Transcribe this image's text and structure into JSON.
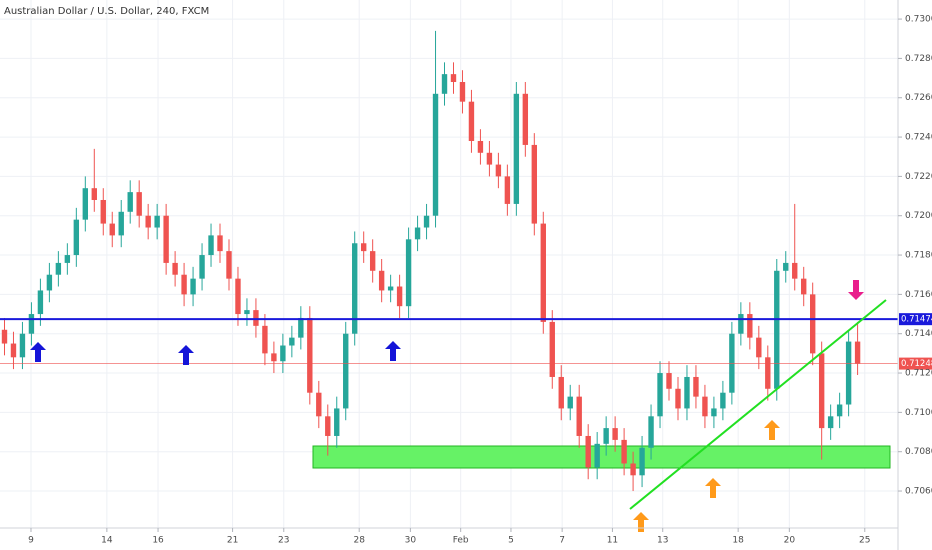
{
  "chart_data": {
    "type": "candlestick",
    "title": "Australian Dollar / U.S. Dollar, 240, FXCM",
    "up_color": "#26a69a",
    "down_color": "#ef5350",
    "x": [
      0,
      1,
      2,
      3,
      4,
      5,
      6,
      7,
      8,
      9,
      10,
      11,
      12,
      13,
      14,
      15,
      16,
      17,
      18,
      19,
      20,
      21,
      22,
      23,
      24,
      25,
      26,
      27,
      28,
      29,
      30,
      31,
      32,
      33,
      34,
      35,
      36,
      37,
      38,
      39,
      40,
      41,
      42,
      43,
      44,
      45,
      46,
      47,
      48,
      49,
      50,
      51,
      52,
      53,
      54,
      55,
      56,
      57,
      58,
      59,
      60,
      61,
      62,
      63,
      64,
      65,
      66,
      67,
      68,
      69,
      70,
      71,
      72,
      73,
      74,
      75,
      76,
      77,
      78,
      79,
      80,
      81,
      82,
      83,
      84,
      85,
      86,
      87,
      88,
      89,
      90,
      91,
      92,
      93,
      94,
      95
    ],
    "open": [
      0.7142,
      0.7135,
      0.7128,
      0.714,
      0.715,
      0.7162,
      0.717,
      0.7176,
      0.718,
      0.7198,
      0.7214,
      0.7208,
      0.7196,
      0.719,
      0.7202,
      0.7212,
      0.72,
      0.7194,
      0.72,
      0.7176,
      0.717,
      0.716,
      0.7168,
      0.718,
      0.719,
      0.7182,
      0.7168,
      0.715,
      0.7152,
      0.7144,
      0.713,
      0.7126,
      0.7134,
      0.7138,
      0.7148,
      0.711,
      0.7098,
      0.7088,
      0.7102,
      0.714,
      0.7186,
      0.7182,
      0.7172,
      0.7162,
      0.7164,
      0.7154,
      0.7188,
      0.7194,
      0.72,
      0.7262,
      0.7272,
      0.7268,
      0.7258,
      0.7238,
      0.7232,
      0.7226,
      0.722,
      0.7206,
      0.7262,
      0.7236,
      0.7196,
      0.7146,
      0.7118,
      0.7102,
      0.7108,
      0.7088,
      0.7072,
      0.7084,
      0.7092,
      0.7086,
      0.7074,
      0.7068,
      0.7082,
      0.7098,
      0.712,
      0.7112,
      0.7102,
      0.7118,
      0.7108,
      0.7098,
      0.7102,
      0.711,
      0.714,
      0.715,
      0.7138,
      0.7128,
      0.7112,
      0.7172,
      0.7176,
      0.7168,
      0.716,
      0.713,
      0.7092,
      0.7098,
      0.7104,
      0.7136
    ],
    "high": [
      0.7148,
      0.7141,
      0.7146,
      0.7156,
      0.7168,
      0.7176,
      0.7182,
      0.7186,
      0.7204,
      0.722,
      0.7234,
      0.7214,
      0.7202,
      0.7208,
      0.7218,
      0.7218,
      0.7206,
      0.7206,
      0.7206,
      0.7182,
      0.7176,
      0.7174,
      0.7186,
      0.7196,
      0.7196,
      0.7188,
      0.7174,
      0.7158,
      0.7158,
      0.715,
      0.7136,
      0.714,
      0.7144,
      0.7154,
      0.7154,
      0.7116,
      0.7104,
      0.7108,
      0.7146,
      0.7192,
      0.7192,
      0.7188,
      0.7178,
      0.717,
      0.717,
      0.7194,
      0.72,
      0.7206,
      0.7294,
      0.7278,
      0.7278,
      0.7274,
      0.7264,
      0.7244,
      0.7238,
      0.7232,
      0.7226,
      0.7268,
      0.7268,
      0.7242,
      0.7202,
      0.7152,
      0.7124,
      0.7114,
      0.7114,
      0.7094,
      0.709,
      0.7098,
      0.7098,
      0.7092,
      0.708,
      0.7088,
      0.7104,
      0.7126,
      0.7126,
      0.7118,
      0.7124,
      0.7124,
      0.7114,
      0.7108,
      0.7116,
      0.7146,
      0.7156,
      0.7156,
      0.7144,
      0.7134,
      0.7178,
      0.7182,
      0.7206,
      0.7174,
      0.7166,
      0.7136,
      0.7104,
      0.711,
      0.7142,
      0.7146
    ],
    "low": [
      0.7129,
      0.7122,
      0.7122,
      0.7134,
      0.7144,
      0.7156,
      0.7164,
      0.717,
      0.7174,
      0.7192,
      0.7202,
      0.719,
      0.7184,
      0.7184,
      0.7196,
      0.7194,
      0.7188,
      0.7188,
      0.717,
      0.7164,
      0.7154,
      0.7154,
      0.7162,
      0.7174,
      0.7176,
      0.7162,
      0.7144,
      0.7144,
      0.7138,
      0.7124,
      0.712,
      0.712,
      0.7128,
      0.7132,
      0.7104,
      0.7092,
      0.7078,
      0.7082,
      0.7096,
      0.7134,
      0.7176,
      0.7166,
      0.7156,
      0.7156,
      0.7148,
      0.7148,
      0.7182,
      0.7188,
      0.7194,
      0.7256,
      0.7262,
      0.7252,
      0.7232,
      0.7226,
      0.722,
      0.7214,
      0.72,
      0.72,
      0.723,
      0.719,
      0.714,
      0.7112,
      0.7096,
      0.7096,
      0.7082,
      0.7066,
      0.7066,
      0.7078,
      0.708,
      0.7068,
      0.706,
      0.7062,
      0.7076,
      0.7092,
      0.7106,
      0.7096,
      0.7096,
      0.7102,
      0.7092,
      0.7092,
      0.7096,
      0.7104,
      0.7134,
      0.7132,
      0.7122,
      0.7106,
      0.7106,
      0.7166,
      0.7162,
      0.7154,
      0.7124,
      0.7076,
      0.7086,
      0.7092,
      0.7098,
      0.7119
    ],
    "close": [
      0.7135,
      0.7128,
      0.714,
      0.715,
      0.7162,
      0.717,
      0.7176,
      0.718,
      0.7198,
      0.7214,
      0.7208,
      0.7196,
      0.719,
      0.7202,
      0.7212,
      0.72,
      0.7194,
      0.72,
      0.7176,
      0.717,
      0.716,
      0.7168,
      0.718,
      0.719,
      0.7182,
      0.7168,
      0.715,
      0.7152,
      0.7144,
      0.713,
      0.7126,
      0.7134,
      0.7138,
      0.7148,
      0.711,
      0.7098,
      0.7088,
      0.7102,
      0.714,
      0.7186,
      0.7182,
      0.7172,
      0.7162,
      0.7164,
      0.7154,
      0.7188,
      0.7194,
      0.72,
      0.7262,
      0.7272,
      0.7268,
      0.7258,
      0.7238,
      0.7232,
      0.7226,
      0.722,
      0.7206,
      0.7262,
      0.7236,
      0.7196,
      0.7146,
      0.7118,
      0.7102,
      0.7108,
      0.7088,
      0.7072,
      0.7084,
      0.7092,
      0.7086,
      0.7074,
      0.7068,
      0.7082,
      0.7098,
      0.712,
      0.7112,
      0.7102,
      0.7118,
      0.7108,
      0.7098,
      0.7102,
      0.711,
      0.714,
      0.715,
      0.7138,
      0.7128,
      0.7112,
      0.7172,
      0.7176,
      0.7168,
      0.716,
      0.713,
      0.7092,
      0.7098,
      0.7104,
      0.7136,
      0.71248
    ],
    "xlim": [
      -0.5,
      99.5
    ],
    "ylim": [
      0.70412,
      0.73097
    ],
    "xticks": [
      {
        "value": 2.95,
        "label": "9"
      },
      {
        "value": 11.4,
        "label": "14"
      },
      {
        "value": 17.1,
        "label": "16"
      },
      {
        "value": 25.4,
        "label": "21"
      },
      {
        "value": 31.1,
        "label": "23"
      },
      {
        "value": 39.5,
        "label": "28"
      },
      {
        "value": 45.2,
        "label": "30"
      },
      {
        "value": 50.8,
        "label": "Feb"
      },
      {
        "value": 56.4,
        "label": "5"
      },
      {
        "value": 62.1,
        "label": "7"
      },
      {
        "value": 67.7,
        "label": "11"
      },
      {
        "value": 73.3,
        "label": "13"
      },
      {
        "value": 81.7,
        "label": "18"
      },
      {
        "value": 87.4,
        "label": "20"
      },
      {
        "value": 95.8,
        "label": "25"
      }
    ],
    "yticks": [
      {
        "value": 0.706,
        "label": "0.70600"
      },
      {
        "value": 0.708,
        "label": "0.70800"
      },
      {
        "value": 0.71,
        "label": "0.71000"
      },
      {
        "value": 0.712,
        "label": "0.71200"
      },
      {
        "value": 0.714,
        "label": "0.71400"
      },
      {
        "value": 0.716,
        "label": "0.71600"
      },
      {
        "value": 0.718,
        "label": "0.71800"
      },
      {
        "value": 0.72,
        "label": "0.72000"
      },
      {
        "value": 0.722,
        "label": "0.72200"
      },
      {
        "value": 0.724,
        "label": "0.72400"
      },
      {
        "value": 0.726,
        "label": "0.72600"
      },
      {
        "value": 0.728,
        "label": "0.72800"
      },
      {
        "value": 0.73,
        "label": "0.73000"
      }
    ],
    "grid": true,
    "levels": [
      {
        "value": 0.71474,
        "label": "0.71474",
        "color": "#1a1adb",
        "width": 2
      },
      {
        "value": 0.71248,
        "label": "0.71248",
        "color": "#ef5350",
        "width": 0.6
      }
    ]
  }
}
